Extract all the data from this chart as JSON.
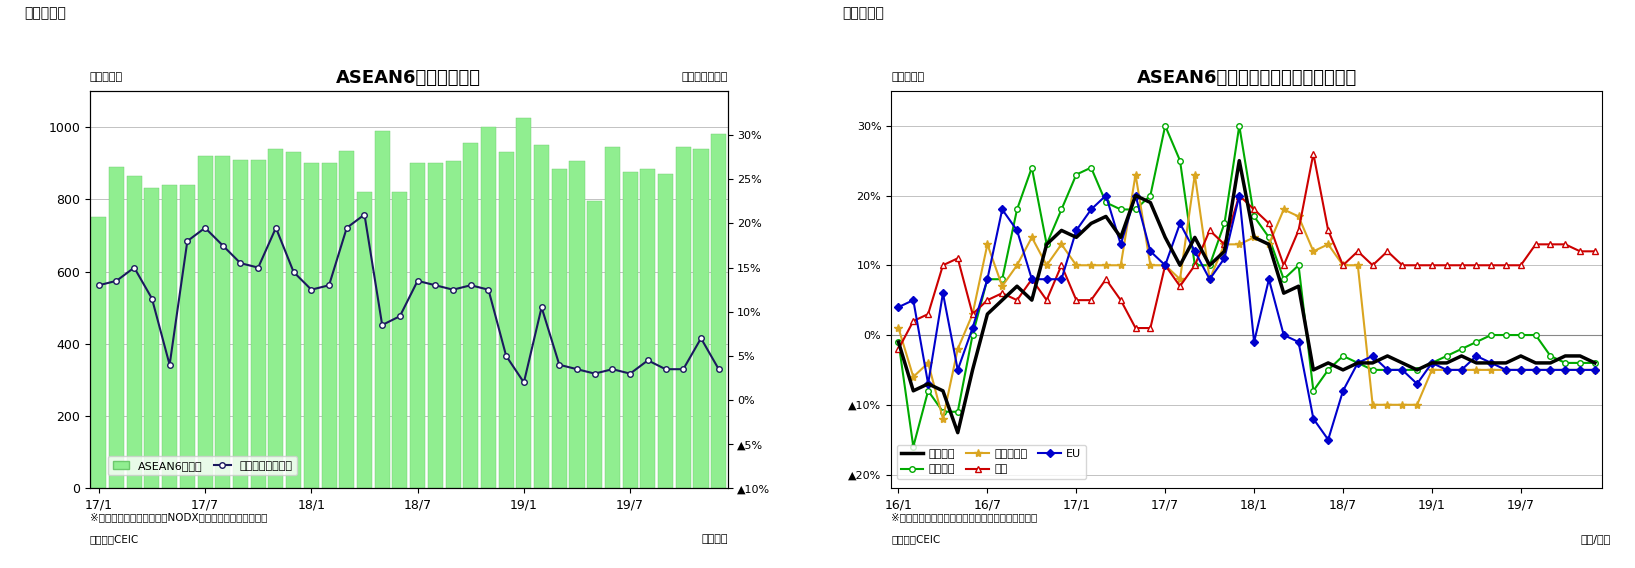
{
  "fig1": {
    "title": "ASEAN6カ国の輸出額",
    "top_label": "（図表１）",
    "ylabel_left": "（億ドル）",
    "ylabel_right": "（前年同月比）",
    "note1": "※シンガポールの輸出額はNODX（石油と再輸出除く）。",
    "note2": "（資料）CEIC",
    "xlabel": "（年月）",
    "bar_color": "#90EE90",
    "bar_edge_color": "#6DC96D",
    "line_color": "#1a1a5e",
    "bar_values": [
      750,
      890,
      865,
      830,
      840,
      840,
      920,
      920,
      910,
      910,
      940,
      930,
      900,
      900,
      935,
      820,
      990,
      820,
      900,
      900,
      905,
      955,
      1000,
      930,
      1025,
      950,
      885,
      905,
      795,
      945,
      875,
      885,
      870,
      945,
      940,
      980
    ],
    "growth_values": [
      13,
      13.5,
      15,
      11.5,
      4,
      18,
      19.5,
      17.5,
      15.5,
      15,
      19.5,
      14.5,
      12.5,
      13,
      19.5,
      21,
      8.5,
      9.5,
      13.5,
      13,
      12.5,
      13,
      12.5,
      5,
      2,
      10.5,
      4,
      3.5,
      3,
      3.5,
      3,
      4.5,
      3.5,
      3.5,
      7,
      3.5
    ],
    "x_tick_pos": [
      0,
      6,
      12,
      18,
      24,
      30
    ],
    "x_tick_labels": [
      "17/1",
      "17/7",
      "18/1",
      "18/7",
      "19/1",
      "19/7"
    ],
    "ylim_left": [
      0,
      1100
    ],
    "ylim_right": [
      -10,
      35
    ],
    "yticks_left": [
      0,
      200,
      400,
      600,
      800,
      1000
    ],
    "yticks_right": [
      -10,
      -5,
      0,
      5,
      10,
      15,
      20,
      25,
      30
    ],
    "yticks_right_labels": [
      "▲10%",
      "▲5%",
      "0%",
      "5%",
      "10%",
      "15%",
      "20%",
      "25%",
      "30%"
    ],
    "legend_bar": "ASEAN6ヵ国計",
    "legend_line": "増加率（右目盛）"
  },
  "fig2": {
    "title": "ASEAN6カ国　仕向け地別の輸出動向",
    "top_label": "（図表２）",
    "ylabel_left": "（前年比）",
    "note1": "※インドネシアは非石油ガス輸出のデータを使用。",
    "note2": "（資料）CEIC",
    "xlabel": "（年/月）",
    "ylim": [
      -22,
      35
    ],
    "yticks_vals": [
      -20,
      -10,
      0,
      10,
      20,
      30
    ],
    "yticks_labels": [
      "▲20%",
      "▲10%",
      "0%",
      "10%",
      "20%",
      "30%"
    ],
    "x_tick_pos": [
      0,
      6,
      12,
      18,
      24,
      30,
      36,
      42
    ],
    "x_tick_labels": [
      "16/1",
      "16/7",
      "17/1",
      "17/7",
      "18/1",
      "18/7",
      "19/1",
      "19/7"
    ],
    "series_total": [
      -1,
      -8,
      -7,
      -8,
      -14,
      -5,
      3,
      5,
      7,
      5,
      13,
      15,
      14,
      16,
      17,
      14,
      20,
      19,
      14,
      10,
      14,
      10,
      12,
      25,
      14,
      13,
      6,
      7,
      -5,
      -4,
      -5,
      -4,
      -4,
      -3,
      -4,
      -5,
      -4,
      -4,
      -3,
      -4,
      -4,
      -4,
      -3,
      -4,
      -4,
      -3,
      -3,
      -4
    ],
    "series_east_asia": [
      -1,
      -16,
      -8,
      -11,
      -11,
      0,
      8,
      8,
      18,
      24,
      13,
      18,
      23,
      24,
      19,
      18,
      18,
      20,
      30,
      25,
      10,
      10,
      16,
      30,
      17,
      14,
      8,
      10,
      -8,
      -5,
      -3,
      -4,
      -5,
      -5,
      -5,
      -5,
      -4,
      -3,
      -2,
      -1,
      0,
      0,
      0,
      0,
      -3,
      -4,
      -4,
      -4
    ],
    "series_se_asia": [
      1,
      -6,
      -4,
      -12,
      -2,
      3,
      13,
      7,
      10,
      14,
      10,
      13,
      10,
      10,
      10,
      10,
      23,
      10,
      10,
      8,
      23,
      8,
      13,
      13,
      14,
      13,
      18,
      17,
      12,
      13,
      10,
      10,
      -10,
      -10,
      -10,
      -10,
      -5,
      -5,
      -5,
      -5,
      -5,
      -5,
      -5,
      -5,
      -5,
      -5,
      -5,
      -5
    ],
    "series_north_am": [
      -2,
      2,
      3,
      10,
      11,
      3,
      5,
      6,
      5,
      8,
      5,
      10,
      5,
      5,
      8,
      5,
      1,
      1,
      10,
      7,
      10,
      15,
      13,
      20,
      18,
      16,
      10,
      15,
      26,
      15,
      10,
      12,
      10,
      12,
      10,
      10,
      10,
      10,
      10,
      10,
      10,
      10,
      10,
      13,
      13,
      13,
      12,
      12
    ],
    "series_eu": [
      4,
      5,
      -7,
      6,
      -5,
      1,
      8,
      18,
      15,
      8,
      8,
      8,
      15,
      18,
      20,
      13,
      20,
      12,
      10,
      16,
      12,
      8,
      11,
      20,
      -1,
      8,
      0,
      -1,
      -12,
      -15,
      -8,
      -4,
      -3,
      -5,
      -5,
      -7,
      -4,
      -5,
      -5,
      -3,
      -4,
      -5,
      -5,
      -5,
      -5,
      -5,
      -5,
      -5
    ],
    "color_total": "#000000",
    "color_east": "#00AA00",
    "color_se": "#DAA520",
    "color_north": "#CC0000",
    "color_eu": "#0000CC",
    "label_total": "輸出全体",
    "label_east": "東アジア",
    "label_se": "東南アジア",
    "label_north": "北米",
    "label_eu": "EU"
  }
}
